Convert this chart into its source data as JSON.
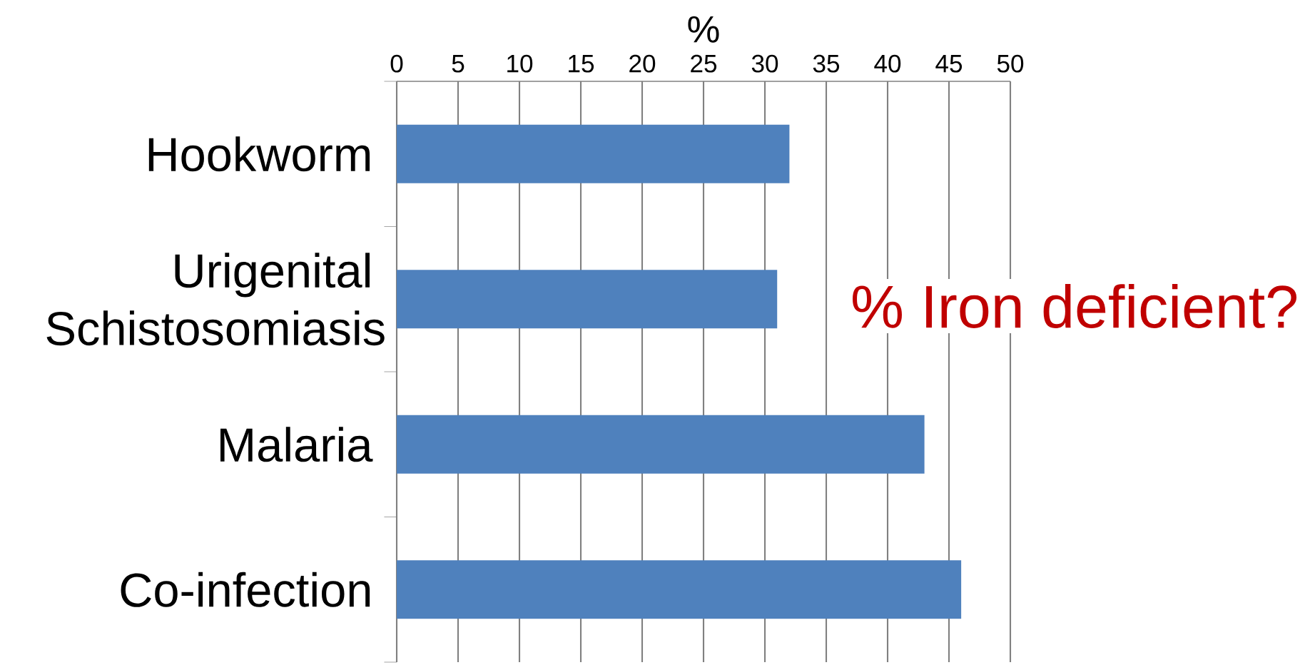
{
  "chart_data": {
    "type": "bar",
    "orientation": "horizontal",
    "xlabel": "%",
    "categories": [
      "Hookworm",
      "Urigenital Schistosomiasis",
      "Malaria",
      "Co-infection"
    ],
    "values": [
      32,
      31,
      43,
      46
    ],
    "color": "#4f81bd",
    "xlim": [
      0,
      50
    ],
    "xticks": [
      0,
      5,
      10,
      15,
      20,
      25,
      30,
      35,
      40,
      45,
      50
    ],
    "grid": "x",
    "annotations": [
      "% Iron deficient?"
    ]
  }
}
